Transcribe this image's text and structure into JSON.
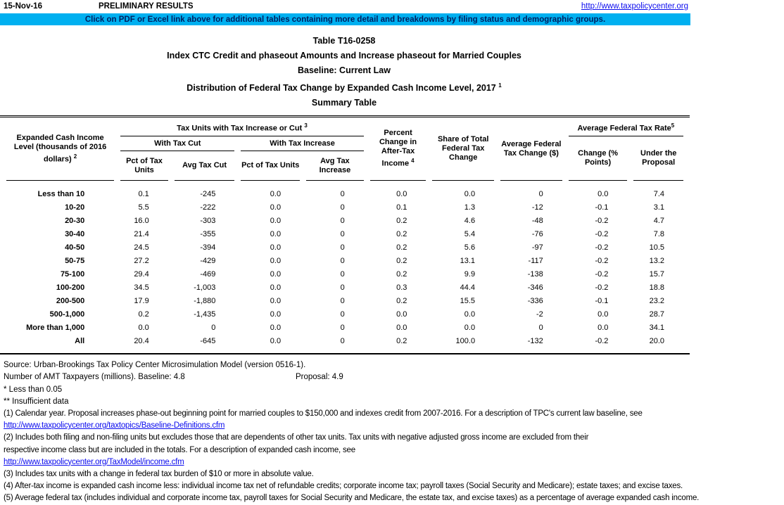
{
  "topbar": {
    "date": "15-Nov-16",
    "preliminary": "PRELIMINARY RESULTS",
    "site_url": "http://www.taxpolicycenter.org"
  },
  "banner": {
    "text": "Click on PDF or Excel link above for additional tables containing more detail and breakdowns by filing status and demographic groups."
  },
  "titles": {
    "line1": "Table T16-0258",
    "line2": "Index CTC Credit and phaseout Amounts and Increase phaseout for Married Couples",
    "line3": "Baseline: Current Law",
    "line4": "Distribution of Federal Tax Change by Expanded Cash Income Level, 2017",
    "line4_sup": "1",
    "line5": "Summary Table"
  },
  "table": {
    "col1_header": "Expanded Cash Income Level (thousands of 2016 dollars)",
    "col1_sup": "2",
    "group1": "Tax Units with Tax Increase or Cut",
    "group1_sup": "3",
    "sub1": "With Tax Cut",
    "sub2": "With Tax Increase",
    "col2": "Pct of Tax Units",
    "col3": "Avg Tax Cut",
    "col4": "Pct of Tax Units",
    "col5": "Avg Tax Increase",
    "col6": "Percent Change in After-Tax Income",
    "col6_sup": "4",
    "col7": "Share of Total Federal Tax Change",
    "col8": "Average Federal Tax Change ($)",
    "group2": "Average Federal Tax Rate",
    "group2_sup": "5",
    "col9": "Change (% Points)",
    "col10": "Under the Proposal",
    "rows": [
      {
        "label": "Less than 10",
        "values": [
          "0.1",
          "-245",
          "0.0",
          "0",
          "0.0",
          "0.0",
          "0",
          "0.0",
          "7.4"
        ]
      },
      {
        "label": "10-20",
        "values": [
          "5.5",
          "-222",
          "0.0",
          "0",
          "0.1",
          "1.3",
          "-12",
          "-0.1",
          "3.1"
        ]
      },
      {
        "label": "20-30",
        "values": [
          "16.0",
          "-303",
          "0.0",
          "0",
          "0.2",
          "4.6",
          "-48",
          "-0.2",
          "4.7"
        ]
      },
      {
        "label": "30-40",
        "values": [
          "21.4",
          "-355",
          "0.0",
          "0",
          "0.2",
          "5.4",
          "-76",
          "-0.2",
          "7.8"
        ]
      },
      {
        "label": "40-50",
        "values": [
          "24.5",
          "-394",
          "0.0",
          "0",
          "0.2",
          "5.6",
          "-97",
          "-0.2",
          "10.5"
        ]
      },
      {
        "label": "50-75",
        "values": [
          "27.2",
          "-429",
          "0.0",
          "0",
          "0.2",
          "13.1",
          "-117",
          "-0.2",
          "13.2"
        ]
      },
      {
        "label": "75-100",
        "values": [
          "29.4",
          "-469",
          "0.0",
          "0",
          "0.2",
          "9.9",
          "-138",
          "-0.2",
          "15.7"
        ]
      },
      {
        "label": "100-200",
        "values": [
          "34.5",
          "-1,003",
          "0.0",
          "0",
          "0.3",
          "44.4",
          "-346",
          "-0.2",
          "18.8"
        ]
      },
      {
        "label": "200-500",
        "values": [
          "17.9",
          "-1,880",
          "0.0",
          "0",
          "0.2",
          "15.5",
          "-336",
          "-0.1",
          "23.2"
        ]
      },
      {
        "label": "500-1,000",
        "values": [
          "0.2",
          "-1,435",
          "0.0",
          "0",
          "0.0",
          "0.0",
          "-2",
          "0.0",
          "28.7"
        ]
      },
      {
        "label": "More than 1,000",
        "values": [
          "0.0",
          "0",
          "0.0",
          "0",
          "0.0",
          "0.0",
          "0",
          "0.0",
          "34.1"
        ]
      },
      {
        "label": "All",
        "values": [
          "20.4",
          "-645",
          "0.0",
          "0",
          "0.2",
          "100.0",
          "-132",
          "-0.2",
          "20.0"
        ]
      }
    ]
  },
  "footer": {
    "source": "Source: Urban-Brookings Tax Policy Center Microsimulation Model (version 0516-1).",
    "amt_baseline": "Number of AMT Taxpayers (millions).  Baseline: 4.8",
    "amt_proposal": "Proposal: 4.9",
    "star1": "* Less than 0.05",
    "star2": "** Insufficient data",
    "fn1": "(1) Calendar year. Proposal increases phase-out beginning point for married couples to $150,000 and indexes credit from 2007-2016. For a description of TPC's current law baseline, see",
    "fn1_link": "http://www.taxpolicycenter.org/taxtopics/Baseline-Definitions.cfm",
    "fn2a": "(2) Includes both filing and non-filing units but excludes those that are dependents of other tax units. Tax units with negative adjusted gross income are excluded from their",
    "fn2b": "respective income class but are included in the totals. For a description of expanded cash income, see",
    "fn2_link": "http://www.taxpolicycenter.org/TaxModel/income.cfm",
    "fn3": "(3) Includes tax units with a change in federal tax burden of $10 or more in absolute value.",
    "fn4": "(4) After-tax income is expanded cash income less: individual income tax net of refundable credits; corporate income tax; payroll taxes (Social Security and Medicare); estate taxes; and excise taxes.",
    "fn5": "(5) Average federal tax (includes individual and corporate income tax, payroll taxes for Social Security and Medicare, the estate tax, and excise taxes) as a percentage of average expanded cash income."
  },
  "colors": {
    "banner_bg": "#00B0F0",
    "banner_text": "#002060",
    "link_blue": "#0B0BEE"
  }
}
